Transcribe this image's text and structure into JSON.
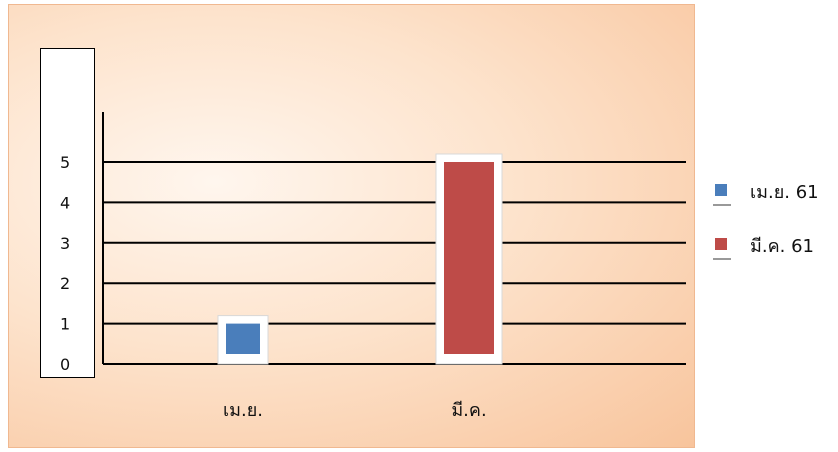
{
  "chart_data": {
    "type": "bar",
    "categories": [
      "เม.ย.",
      "มี.ค."
    ],
    "series": [
      {
        "name": "เม.ย. 61",
        "values": [
          1,
          null
        ],
        "color": "#4a7ebb"
      },
      {
        "name": "มี.ค. 61",
        "values": [
          null,
          5
        ],
        "color": "#be4b48"
      }
    ],
    "y_ticks": [
      "0",
      "1",
      "2",
      "3",
      "4",
      "5"
    ],
    "ylim": [
      0,
      5
    ],
    "grid": true,
    "legend_position": "right",
    "title": "",
    "xlabel": "",
    "ylabel": ""
  }
}
